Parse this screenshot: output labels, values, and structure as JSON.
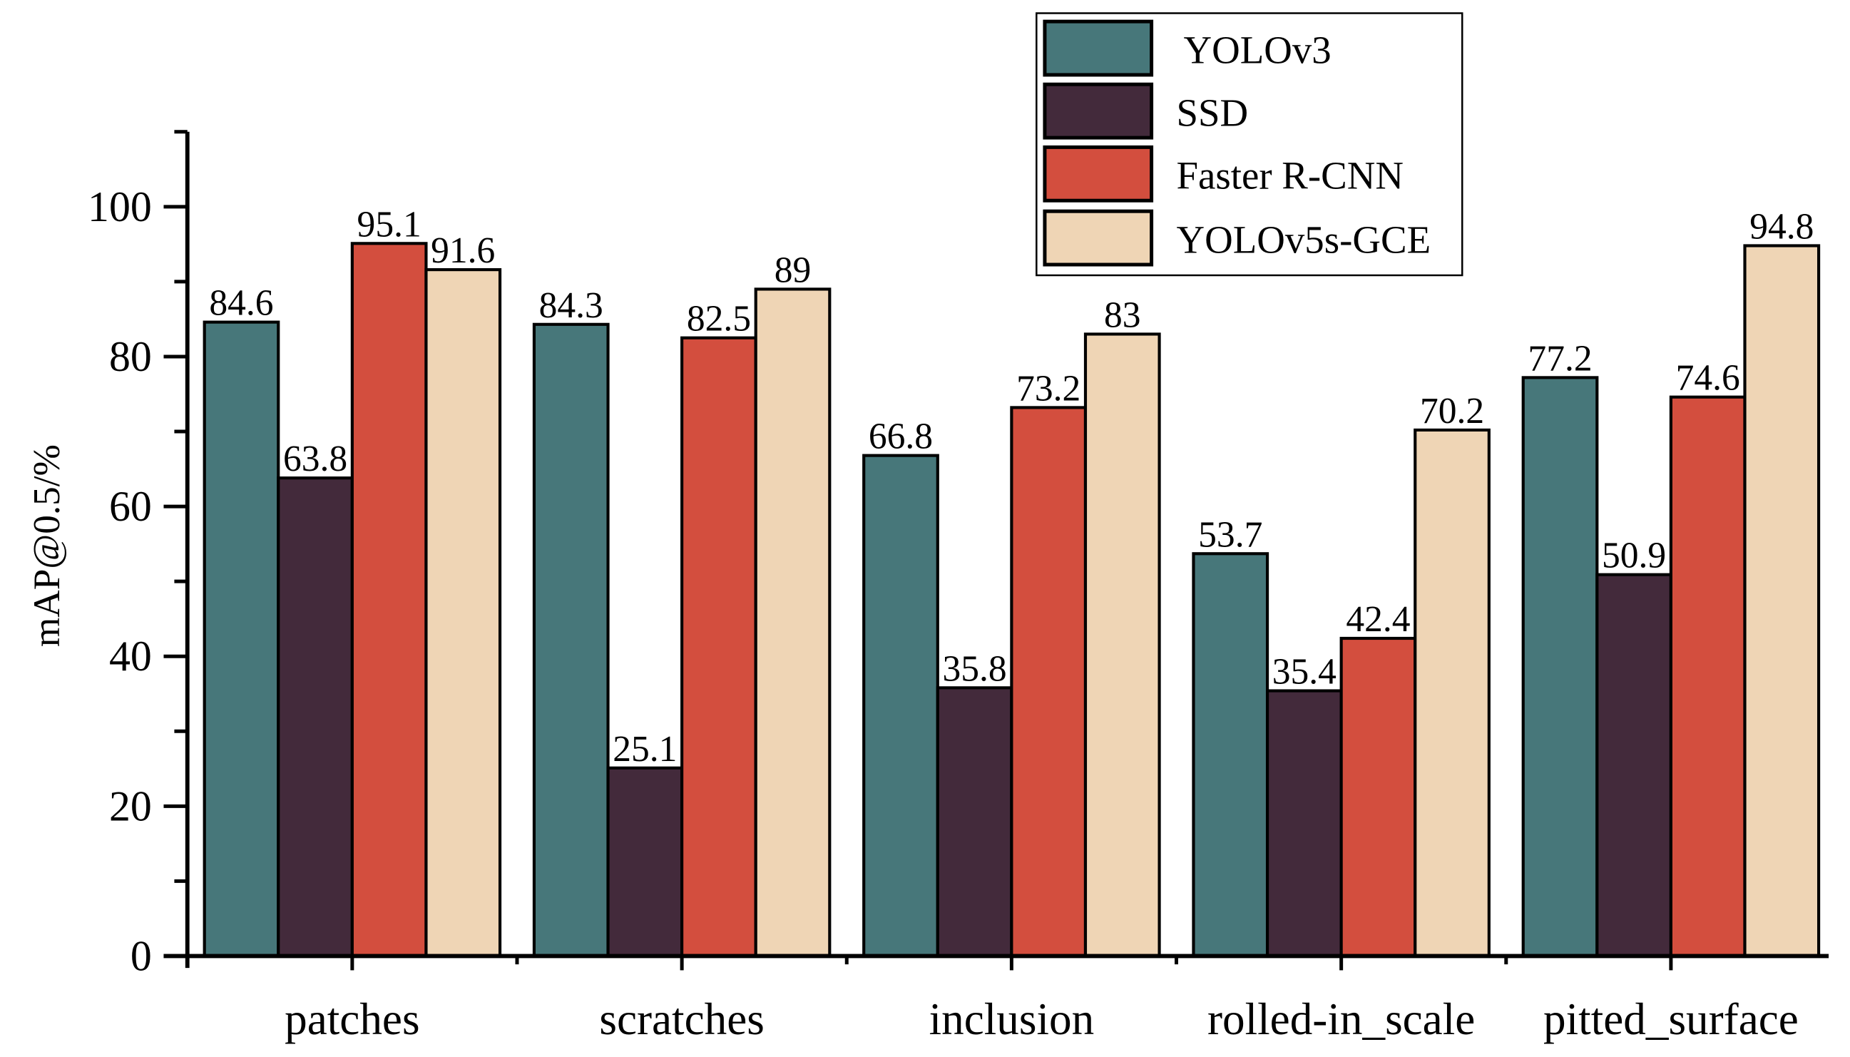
{
  "chart_data": {
    "type": "bar",
    "title": "",
    "xlabel": "",
    "ylabel": "mAP@0.5/%",
    "ylim": [
      0,
      110
    ],
    "yticks": [
      "0",
      "20",
      "40",
      "60",
      "80",
      "100"
    ],
    "categories": [
      "patches",
      "scratches",
      "inclusion",
      "rolled-in_scale",
      "pitted_surface"
    ],
    "series": [
      {
        "name": "YOLOv3",
        "color": "#47777a",
        "values": [
          84.6,
          84.3,
          66.8,
          53.7,
          77.2
        ],
        "labels": [
          "84.6",
          "84.3",
          "66.8",
          "53.7",
          "77.2"
        ]
      },
      {
        "name": "SSD",
        "color": "#432a3b",
        "values": [
          63.8,
          25.1,
          35.8,
          35.4,
          50.9
        ],
        "labels": [
          "63.8",
          "25.1",
          "35.8",
          "35.4",
          "50.9"
        ]
      },
      {
        "name": "Faster R-CNN",
        "color": "#d34e3e",
        "values": [
          95.1,
          82.5,
          73.2,
          42.4,
          74.6
        ],
        "labels": [
          "95.1",
          "82.5",
          "73.2",
          "42.4",
          "74.6"
        ]
      },
      {
        "name": "YOLOv5s-GCE",
        "color": "#efd5b5",
        "values": [
          91.6,
          89,
          83,
          70.2,
          94.8
        ],
        "labels": [
          "91.6",
          "89",
          "83",
          "70.2",
          "94.8"
        ]
      }
    ],
    "grid": false,
    "legend_position": "top-right"
  }
}
